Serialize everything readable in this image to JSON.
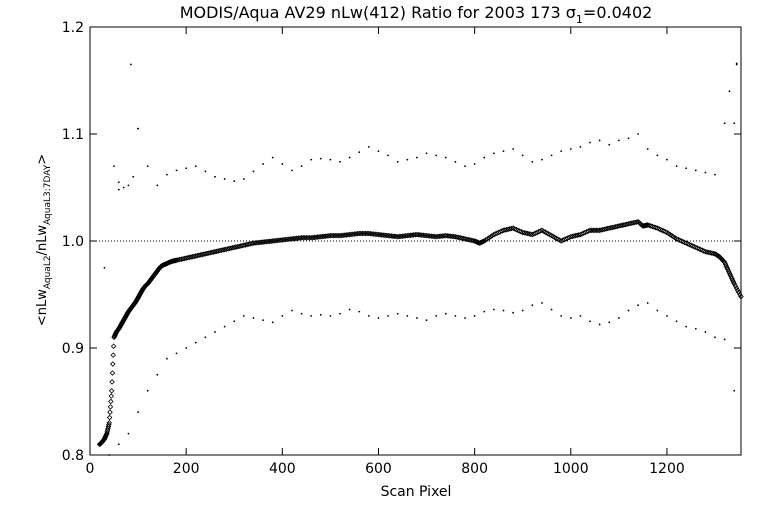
{
  "chart_data": {
    "type": "scatter",
    "title": "MODIS/Aqua AV29 nLw(412) Ratio for 2003 173 σ",
    "title_subscript": "1",
    "title_value": "=0.0402",
    "xlabel": "Scan Pixel",
    "ylabel": {
      "open": "<",
      "a": "nLw",
      "a_sub": "AquaL2",
      "sep": "/",
      "b": "nLw",
      "b_sub": "AquaL3:7DAY",
      "close": ">"
    },
    "xlim": [
      0,
      1354
    ],
    "ylim": [
      0.8,
      1.2
    ],
    "xticks": [
      0,
      200,
      400,
      600,
      800,
      1000,
      1200
    ],
    "yticks": [
      "0.8",
      "0.9",
      "1.0",
      "1.1",
      "1.2"
    ],
    "reference_line": 1.0,
    "grid": false,
    "colors": {
      "points": "#000000",
      "axes": "#000000",
      "background": "#ffffff"
    },
    "series": [
      {
        "role": "mean ratio",
        "marker": "diamond",
        "points": [
          [
            20,
            0.81
          ],
          [
            25,
            0.812
          ],
          [
            30,
            0.815
          ],
          [
            35,
            0.82
          ],
          [
            40,
            0.83
          ],
          [
            45,
            0.86
          ],
          [
            50,
            0.91
          ],
          [
            55,
            0.915
          ],
          [
            60,
            0.918
          ],
          [
            65,
            0.922
          ],
          [
            70,
            0.926
          ],
          [
            75,
            0.93
          ],
          [
            80,
            0.934
          ],
          [
            85,
            0.937
          ],
          [
            90,
            0.94
          ],
          [
            95,
            0.943
          ],
          [
            100,
            0.947
          ],
          [
            105,
            0.951
          ],
          [
            110,
            0.955
          ],
          [
            115,
            0.958
          ],
          [
            120,
            0.96
          ],
          [
            125,
            0.963
          ],
          [
            130,
            0.966
          ],
          [
            135,
            0.969
          ],
          [
            140,
            0.972
          ],
          [
            145,
            0.975
          ],
          [
            150,
            0.977
          ],
          [
            160,
            0.979
          ],
          [
            170,
            0.981
          ],
          [
            180,
            0.982
          ],
          [
            200,
            0.984
          ],
          [
            220,
            0.986
          ],
          [
            240,
            0.988
          ],
          [
            260,
            0.99
          ],
          [
            280,
            0.992
          ],
          [
            300,
            0.994
          ],
          [
            320,
            0.996
          ],
          [
            340,
            0.998
          ],
          [
            360,
            0.999
          ],
          [
            380,
            1.0
          ],
          [
            400,
            1.001
          ],
          [
            420,
            1.002
          ],
          [
            440,
            1.003
          ],
          [
            460,
            1.003
          ],
          [
            480,
            1.004
          ],
          [
            500,
            1.005
          ],
          [
            520,
            1.005
          ],
          [
            540,
            1.006
          ],
          [
            560,
            1.007
          ],
          [
            580,
            1.007
          ],
          [
            600,
            1.006
          ],
          [
            620,
            1.005
          ],
          [
            640,
            1.004
          ],
          [
            660,
            1.005
          ],
          [
            680,
            1.006
          ],
          [
            700,
            1.005
          ],
          [
            720,
            1.004
          ],
          [
            740,
            1.005
          ],
          [
            760,
            1.004
          ],
          [
            780,
            1.002
          ],
          [
            800,
            1.0
          ],
          [
            810,
            0.998
          ],
          [
            820,
            1.0
          ],
          [
            840,
            1.006
          ],
          [
            860,
            1.01
          ],
          [
            880,
            1.012
          ],
          [
            900,
            1.008
          ],
          [
            920,
            1.006
          ],
          [
            940,
            1.01
          ],
          [
            960,
            1.005
          ],
          [
            980,
            1.0
          ],
          [
            1000,
            1.004
          ],
          [
            1020,
            1.006
          ],
          [
            1040,
            1.01
          ],
          [
            1060,
            1.01
          ],
          [
            1080,
            1.012
          ],
          [
            1100,
            1.014
          ],
          [
            1120,
            1.016
          ],
          [
            1140,
            1.018
          ],
          [
            1150,
            1.014
          ],
          [
            1160,
            1.015
          ],
          [
            1180,
            1.012
          ],
          [
            1200,
            1.008
          ],
          [
            1220,
            1.002
          ],
          [
            1240,
            0.998
          ],
          [
            1260,
            0.994
          ],
          [
            1280,
            0.99
          ],
          [
            1300,
            0.988
          ],
          [
            1310,
            0.985
          ],
          [
            1320,
            0.98
          ],
          [
            1330,
            0.97
          ],
          [
            1340,
            0.96
          ],
          [
            1354,
            0.948
          ]
        ]
      },
      {
        "role": "upper envelope",
        "marker": "dot",
        "points": [
          [
            50,
            1.07
          ],
          [
            60,
            1.048
          ],
          [
            70,
            1.05
          ],
          [
            80,
            1.052
          ],
          [
            100,
            1.105
          ],
          [
            120,
            1.07
          ],
          [
            140,
            1.052
          ],
          [
            160,
            1.062
          ],
          [
            180,
            1.066
          ],
          [
            200,
            1.068
          ],
          [
            220,
            1.07
          ],
          [
            240,
            1.065
          ],
          [
            260,
            1.06
          ],
          [
            280,
            1.058
          ],
          [
            300,
            1.056
          ],
          [
            320,
            1.058
          ],
          [
            340,
            1.065
          ],
          [
            360,
            1.072
          ],
          [
            380,
            1.078
          ],
          [
            400,
            1.072
          ],
          [
            420,
            1.066
          ],
          [
            440,
            1.07
          ],
          [
            460,
            1.076
          ],
          [
            480,
            1.077
          ],
          [
            500,
            1.076
          ],
          [
            520,
            1.074
          ],
          [
            540,
            1.078
          ],
          [
            560,
            1.083
          ],
          [
            580,
            1.088
          ],
          [
            600,
            1.084
          ],
          [
            620,
            1.08
          ],
          [
            640,
            1.074
          ],
          [
            660,
            1.076
          ],
          [
            680,
            1.078
          ],
          [
            700,
            1.082
          ],
          [
            720,
            1.08
          ],
          [
            740,
            1.078
          ],
          [
            760,
            1.074
          ],
          [
            780,
            1.07
          ],
          [
            800,
            1.072
          ],
          [
            820,
            1.078
          ],
          [
            840,
            1.082
          ],
          [
            860,
            1.084
          ],
          [
            880,
            1.086
          ],
          [
            900,
            1.08
          ],
          [
            920,
            1.074
          ],
          [
            940,
            1.076
          ],
          [
            960,
            1.08
          ],
          [
            980,
            1.084
          ],
          [
            1000,
            1.086
          ],
          [
            1020,
            1.088
          ],
          [
            1040,
            1.092
          ],
          [
            1060,
            1.094
          ],
          [
            1080,
            1.09
          ],
          [
            1100,
            1.094
          ],
          [
            1120,
            1.096
          ],
          [
            1140,
            1.1
          ],
          [
            1160,
            1.086
          ],
          [
            1180,
            1.08
          ],
          [
            1200,
            1.076
          ],
          [
            1220,
            1.07
          ],
          [
            1240,
            1.068
          ],
          [
            1260,
            1.066
          ],
          [
            1280,
            1.064
          ],
          [
            1300,
            1.062
          ],
          [
            1320,
            1.11
          ],
          [
            1330,
            1.14
          ],
          [
            1345,
            1.165
          ]
        ]
      },
      {
        "role": "lower envelope",
        "marker": "dot",
        "points": [
          [
            40,
            0.8
          ],
          [
            60,
            0.81
          ],
          [
            80,
            0.82
          ],
          [
            100,
            0.84
          ],
          [
            120,
            0.86
          ],
          [
            140,
            0.875
          ],
          [
            160,
            0.89
          ],
          [
            180,
            0.895
          ],
          [
            200,
            0.9
          ],
          [
            220,
            0.905
          ],
          [
            240,
            0.91
          ],
          [
            260,
            0.915
          ],
          [
            280,
            0.92
          ],
          [
            300,
            0.925
          ],
          [
            320,
            0.93
          ],
          [
            340,
            0.928
          ],
          [
            360,
            0.926
          ],
          [
            380,
            0.924
          ],
          [
            400,
            0.93
          ],
          [
            420,
            0.935
          ],
          [
            440,
            0.932
          ],
          [
            460,
            0.93
          ],
          [
            480,
            0.931
          ],
          [
            500,
            0.93
          ],
          [
            520,
            0.932
          ],
          [
            540,
            0.936
          ],
          [
            560,
            0.934
          ],
          [
            580,
            0.93
          ],
          [
            600,
            0.928
          ],
          [
            620,
            0.93
          ],
          [
            640,
            0.932
          ],
          [
            660,
            0.93
          ],
          [
            680,
            0.928
          ],
          [
            700,
            0.926
          ],
          [
            720,
            0.93
          ],
          [
            740,
            0.932
          ],
          [
            760,
            0.93
          ],
          [
            780,
            0.928
          ],
          [
            800,
            0.93
          ],
          [
            820,
            0.934
          ],
          [
            840,
            0.936
          ],
          [
            860,
            0.935
          ],
          [
            880,
            0.933
          ],
          [
            900,
            0.935
          ],
          [
            920,
            0.94
          ],
          [
            940,
            0.942
          ],
          [
            960,
            0.936
          ],
          [
            980,
            0.93
          ],
          [
            1000,
            0.928
          ],
          [
            1020,
            0.93
          ],
          [
            1040,
            0.925
          ],
          [
            1060,
            0.922
          ],
          [
            1080,
            0.924
          ],
          [
            1100,
            0.928
          ],
          [
            1120,
            0.935
          ],
          [
            1140,
            0.94
          ],
          [
            1160,
            0.942
          ],
          [
            1180,
            0.935
          ],
          [
            1200,
            0.93
          ],
          [
            1220,
            0.925
          ],
          [
            1240,
            0.92
          ],
          [
            1260,
            0.918
          ],
          [
            1280,
            0.915
          ],
          [
            1300,
            0.91
          ],
          [
            1320,
            0.908
          ],
          [
            1340,
            0.86
          ]
        ]
      },
      {
        "role": "outliers",
        "marker": "dot",
        "points": [
          [
            85,
            1.165
          ],
          [
            60,
            1.055
          ],
          [
            90,
            1.06
          ],
          [
            100,
            1.105
          ],
          [
            1345,
            1.166
          ],
          [
            1340,
            1.11
          ],
          [
            30,
            0.975
          ]
        ]
      }
    ]
  }
}
